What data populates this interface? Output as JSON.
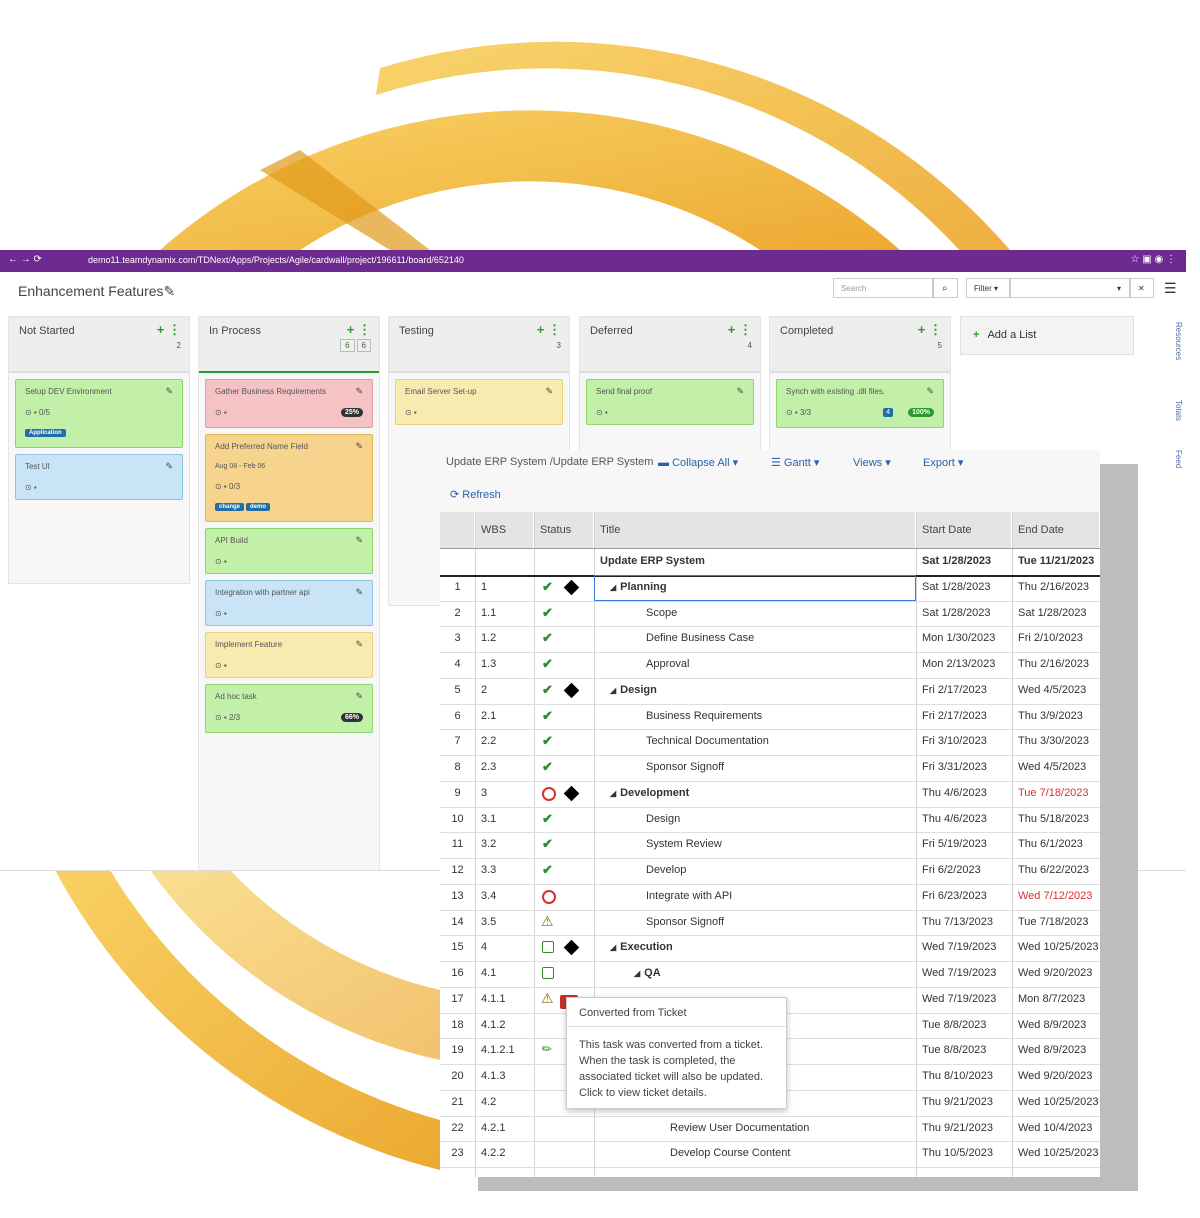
{
  "browser": {
    "url": "demo11.teamdynamix.com/TDNext/Apps/Projects/Agile/cardwall/project/196611/board/652140"
  },
  "board": {
    "title": "Enhancement Features",
    "search_placeholder": "Search",
    "filter_label": "Filter",
    "add_list": "Add a List",
    "side_tabs": [
      "Resources",
      "Totals",
      "Feed"
    ],
    "lists": [
      {
        "name": "Not Started",
        "count": "2",
        "accent": "#ddd",
        "cards": [
          {
            "title": "Setup DEV Environment",
            "color": "#c3f0a9",
            "border": "#8fd36b",
            "meta": "0/5",
            "tags": [
              "Application"
            ]
          },
          {
            "title": "Test UI",
            "color": "#c8e4f6",
            "border": "#8fc3e6"
          }
        ]
      },
      {
        "name": "In Process",
        "count": "6",
        "limit": "6",
        "accent": "#2e9a2e",
        "cards": [
          {
            "title": "Gather Business Requirements",
            "color": "#f5c3c5",
            "border": "#e49a9d",
            "percent": "25%"
          },
          {
            "title": "Add Preferred Name Field",
            "color": "#f6d48e",
            "border": "#e4b553",
            "dates": "Aug 08 - Feb 06",
            "meta": "0/3",
            "tags": [
              "change",
              "demo"
            ]
          },
          {
            "title": "API Build",
            "color": "#c3f0a9",
            "border": "#8fd36b"
          },
          {
            "title": "Integration with partner api",
            "color": "#c8e4f6",
            "border": "#8fc3e6"
          },
          {
            "title": "Implement Feature",
            "color": "#f7ebb0",
            "border": "#e6d27a"
          },
          {
            "title": "Ad hoc task",
            "color": "#c3f0a9",
            "border": "#8fd36b",
            "meta": "2/3",
            "percent": "66%"
          }
        ]
      },
      {
        "name": "Testing",
        "count": "3",
        "accent": "#ddd",
        "cards": [
          {
            "title": "Email Server Set-up",
            "color": "#f7ebb0",
            "border": "#e6d27a"
          }
        ]
      },
      {
        "name": "Deferred",
        "count": "4",
        "accent": "#ddd",
        "cards": [
          {
            "title": "Send final proof",
            "color": "#c3f0a9",
            "border": "#8fd36b"
          }
        ]
      },
      {
        "name": "Completed",
        "count": "5",
        "accent": "#ddd",
        "cards": [
          {
            "title": "Synch with existing .dll files.",
            "color": "#c3f0a9",
            "border": "#8fd36b",
            "meta": "3/3",
            "badge": "4",
            "percent": "100%"
          }
        ]
      }
    ]
  },
  "gantt": {
    "breadcrumb": "Update ERP System /Update ERP System",
    "toolbar": [
      "Collapse All",
      "Gantt",
      "Views",
      "Export"
    ],
    "refresh": "Refresh",
    "columns": [
      "WBS",
      "Status",
      "Title",
      "Start Date",
      "End Date"
    ],
    "summary": {
      "title": "Update ERP System",
      "start": "Sat 1/28/2023",
      "end": "Tue 11/21/2023"
    },
    "rows": [
      {
        "num": "1",
        "wbs": "1",
        "title": "Planning",
        "start": "Sat 1/28/2023",
        "end": "Thu 2/16/2023",
        "level": 1,
        "parent": true,
        "status": "done",
        "milestone": true
      },
      {
        "num": "2",
        "wbs": "1.1",
        "title": "Scope",
        "start": "Sat 1/28/2023",
        "end": "Sat 1/28/2023",
        "level": 2,
        "status": "done"
      },
      {
        "num": "3",
        "wbs": "1.2",
        "title": "Define Business Case",
        "start": "Mon 1/30/2023",
        "end": "Fri 2/10/2023",
        "level": 2,
        "status": "done"
      },
      {
        "num": "4",
        "wbs": "1.3",
        "title": "Approval",
        "start": "Mon 2/13/2023",
        "end": "Thu 2/16/2023",
        "level": 2,
        "status": "done"
      },
      {
        "num": "5",
        "wbs": "2",
        "title": "Design",
        "start": "Fri 2/17/2023",
        "end": "Wed 4/5/2023",
        "level": 1,
        "parent": true,
        "status": "done",
        "milestone": true
      },
      {
        "num": "6",
        "wbs": "2.1",
        "title": "Business Requirements",
        "start": "Fri 2/17/2023",
        "end": "Thu 3/9/2023",
        "level": 2,
        "status": "done"
      },
      {
        "num": "7",
        "wbs": "2.2",
        "title": "Technical Documentation",
        "start": "Fri 3/10/2023",
        "end": "Thu 3/30/2023",
        "level": 2,
        "status": "done"
      },
      {
        "num": "8",
        "wbs": "2.3",
        "title": "Sponsor Signoff",
        "start": "Fri 3/31/2023",
        "end": "Wed 4/5/2023",
        "level": 2,
        "status": "done"
      },
      {
        "num": "9",
        "wbs": "3",
        "title": "Development",
        "start": "Thu 4/6/2023",
        "end": "Tue 7/18/2023",
        "level": 1,
        "parent": true,
        "status": "late",
        "milestone": true,
        "overdue": true
      },
      {
        "num": "10",
        "wbs": "3.1",
        "title": "Design",
        "start": "Thu 4/6/2023",
        "end": "Thu 5/18/2023",
        "level": 2,
        "status": "done"
      },
      {
        "num": "11",
        "wbs": "3.2",
        "title": "System Review",
        "start": "Fri 5/19/2023",
        "end": "Thu 6/1/2023",
        "level": 2,
        "status": "done"
      },
      {
        "num": "12",
        "wbs": "3.3",
        "title": "Develop",
        "start": "Fri 6/2/2023",
        "end": "Thu 6/22/2023",
        "level": 2,
        "status": "done"
      },
      {
        "num": "13",
        "wbs": "3.4",
        "title": "Integrate with API",
        "start": "Fri 6/23/2023",
        "end": "Wed 7/12/2023",
        "level": 2,
        "status": "late",
        "overdue": true
      },
      {
        "num": "14",
        "wbs": "3.5",
        "title": "Sponsor Signoff",
        "start": "Thu 7/13/2023",
        "end": "Tue 7/18/2023",
        "level": 2,
        "status": "warning"
      },
      {
        "num": "15",
        "wbs": "4",
        "title": "Execution",
        "start": "Wed 7/19/2023",
        "end": "Wed 10/25/2023",
        "level": 1,
        "parent": true,
        "status": "open",
        "milestone": true
      },
      {
        "num": "16",
        "wbs": "4.1",
        "title": "QA",
        "start": "Wed 7/19/2023",
        "end": "Wed 9/20/2023",
        "level": 2,
        "parent": true,
        "status": "open"
      },
      {
        "num": "17",
        "wbs": "4.1.1",
        "title": null,
        "start": "Wed 7/19/2023",
        "end": "Mon 8/7/2023",
        "level": 3,
        "status": "warning",
        "ticket_flag": true
      },
      {
        "num": "18",
        "wbs": "4.1.2",
        "title": null,
        "start": "Tue 8/8/2023",
        "end": "Wed 8/9/2023",
        "level": 3
      },
      {
        "num": "19",
        "wbs": "4.1.2.1",
        "title": null,
        "start": "Tue 8/8/2023",
        "end": "Wed 8/9/2023",
        "level": 3,
        "status": "ticket"
      },
      {
        "num": "20",
        "wbs": "4.1.3",
        "title": null,
        "start": "Thu 8/10/2023",
        "end": "Wed 9/20/2023",
        "level": 3
      },
      {
        "num": "21",
        "wbs": "4.2",
        "title": null,
        "start": "Thu 9/21/2023",
        "end": "Wed 10/25/2023",
        "level": 2
      },
      {
        "num": "22",
        "wbs": "4.2.1",
        "title": "Review User Documentation",
        "start": "Thu 9/21/2023",
        "end": "Wed 10/4/2023",
        "level": 3
      },
      {
        "num": "23",
        "wbs": "4.2.2",
        "title": "Develop Course Content",
        "start": "Thu 10/5/2023",
        "end": "Wed 10/25/2023",
        "level": 3
      }
    ]
  },
  "tooltip": {
    "title": "Converted from Ticket",
    "body": "This task was converted from a ticket. When the task is completed, the associated ticket will also be updated. Click to view ticket details."
  }
}
